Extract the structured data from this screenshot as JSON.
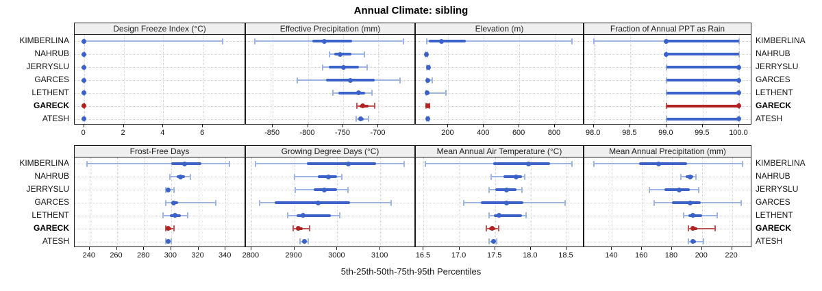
{
  "title": "Annual Climate: sibling",
  "footer_label": "5th-25th-50th-75th-95th Percentiles",
  "colors": {
    "series_blue": "#3a62c9",
    "series_blue_light": "#9db4e6",
    "series_red": "#b22222",
    "series_red_light": "#c45252",
    "grid": "#d4d4d4",
    "header_bg": "#efefef",
    "border": "#1a1a1a"
  },
  "chart_data": {
    "type": "dot-whisker",
    "description": "Percentile range plot: dot = 50th percentile, thick bar = 25th-75th, thin capped whisker = 5th-95th",
    "percentile_levels": [
      "5th",
      "25th",
      "50th",
      "75th",
      "95th"
    ],
    "stations": [
      "KIMBERLINA",
      "NAHRUB",
      "JERRYSLU",
      "GARCES",
      "LETHENT",
      "GARECK",
      "ATESH"
    ],
    "highlighted_station": "GARECK",
    "legend_position": "none",
    "grid": "dotted",
    "panels": [
      {
        "title": "Design Freeze Index (°C)",
        "row": 0,
        "col": 0,
        "xlim": [
          -0.44,
          8.14
        ],
        "ticks": [
          0,
          2,
          4,
          6
        ],
        "tick_labels": [
          "0",
          "2",
          "4",
          "6"
        ],
        "values": {
          "KIMBERLINA": [
            0,
            0,
            0,
            0,
            7
          ],
          "NAHRUB": [
            0,
            0,
            0,
            0,
            0
          ],
          "JERRYSLU": [
            0,
            0,
            0,
            0,
            0
          ],
          "GARCES": [
            0,
            0,
            0,
            0,
            0
          ],
          "LETHENT": [
            0,
            0,
            0,
            0,
            0
          ],
          "GARECK": [
            0,
            0,
            0,
            0,
            0
          ],
          "ATESH": [
            0,
            0,
            0,
            0,
            0
          ]
        }
      },
      {
        "title": "Effective Precipitation (mm)",
        "row": 0,
        "col": 1,
        "xlim": [
          -887,
          -648
        ],
        "ticks": [
          -850,
          -800,
          -750,
          -700
        ],
        "tick_labels": [
          "-850",
          "-800",
          "-750",
          "-700"
        ],
        "values": {
          "KIMBERLINA": [
            -875,
            -794,
            -777,
            -737,
            -665
          ],
          "NAHRUB": [
            -769,
            -763,
            -754,
            -738,
            -720
          ],
          "JERRYSLU": [
            -779,
            -770,
            -750,
            -728,
            -716
          ],
          "GARCES": [
            -815,
            -774,
            -740,
            -705,
            -669
          ],
          "LETHENT": [
            -765,
            -757,
            -728,
            -719,
            -709
          ],
          "GARECK": [
            -731,
            -727,
            -722,
            -714,
            -705
          ],
          "ATESH": [
            -732,
            -728,
            -725,
            -721,
            -714
          ]
        }
      },
      {
        "title": "Elevation (m)",
        "row": 0,
        "col": 2,
        "xlim": [
          21,
          962
        ],
        "ticks": [
          200,
          400,
          600,
          800
        ],
        "tick_labels": [
          "200",
          "400",
          "600",
          "800"
        ],
        "values": {
          "KIMBERLINA": [
            80,
            90,
            160,
            300,
            895
          ],
          "NAHRUB": [
            73,
            75,
            78,
            80,
            83
          ],
          "JERRYSLU": [
            80,
            84,
            88,
            92,
            96
          ],
          "GARCES": [
            78,
            82,
            86,
            95,
            110
          ],
          "LETHENT": [
            75,
            78,
            82,
            95,
            185
          ],
          "GARECK": [
            75,
            80,
            85,
            90,
            95
          ],
          "ATESH": [
            78,
            82,
            85,
            88,
            92
          ]
        }
      },
      {
        "title": "Fraction of Annual PPT as Rain",
        "row": 0,
        "col": 3,
        "xlim": [
          97.88,
          100.17
        ],
        "ticks": [
          98.0,
          98.5,
          99.0,
          99.5,
          100.0
        ],
        "tick_labels": [
          "98.0",
          "98.5",
          "99.0",
          "99.5",
          "100.0"
        ],
        "values": {
          "KIMBERLINA": [
            98.0,
            99.0,
            99.0,
            100.0,
            100.0
          ],
          "NAHRUB": [
            99.0,
            99.0,
            99.0,
            100.0,
            100.0
          ],
          "JERRYSLU": [
            99.0,
            99.0,
            100.0,
            100.0,
            100.0
          ],
          "GARCES": [
            99.0,
            99.0,
            100.0,
            100.0,
            100.0
          ],
          "LETHENT": [
            99.0,
            99.0,
            100.0,
            100.0,
            100.0
          ],
          "GARECK": [
            99.0,
            99.0,
            100.0,
            100.0,
            100.0
          ],
          "ATESH": [
            99.0,
            99.0,
            100.0,
            100.0,
            100.0
          ]
        }
      },
      {
        "title": "Frost-Free Days",
        "row": 1,
        "col": 0,
        "xlim": [
          229.5,
          354.5
        ],
        "ticks": [
          240,
          260,
          280,
          300,
          320,
          340
        ],
        "tick_labels": [
          "240",
          "260",
          "280",
          "300",
          "320",
          "340"
        ],
        "values": {
          "KIMBERLINA": [
            238,
            300,
            310,
            322,
            343
          ],
          "NAHRUB": [
            299,
            304,
            307,
            310,
            314
          ],
          "JERRYSLU": [
            296,
            297,
            298,
            299,
            302
          ],
          "GARCES": [
            296,
            300,
            302,
            305,
            333
          ],
          "LETHENT": [
            294,
            299,
            303,
            307,
            312
          ],
          "GARECK": [
            296,
            297,
            298,
            300,
            302
          ],
          "ATESH": [
            296,
            297,
            298,
            299,
            300
          ]
        }
      },
      {
        "title": "Growing Degree Days (°C)",
        "row": 1,
        "col": 1,
        "xlim": [
          2789,
          3181
        ],
        "ticks": [
          2800,
          2900,
          3000,
          3100
        ],
        "tick_labels": [
          "2800",
          "2900",
          "3000",
          "3100"
        ],
        "values": {
          "KIMBERLINA": [
            2810,
            2930,
            3025,
            3090,
            3155
          ],
          "NAHRUB": [
            2900,
            2955,
            2980,
            3000,
            3010
          ],
          "JERRYSLU": [
            2902,
            2945,
            2970,
            3000,
            3025
          ],
          "GARCES": [
            2820,
            2855,
            2955,
            3030,
            3125
          ],
          "LETHENT": [
            2885,
            2905,
            2920,
            2985,
            3005
          ],
          "GARECK": [
            2897,
            2903,
            2910,
            2920,
            2935
          ],
          "ATESH": [
            2913,
            2918,
            2924,
            2928,
            2932
          ]
        }
      },
      {
        "title": "Mean Annual Air Temperature (°C)",
        "row": 1,
        "col": 2,
        "xlim": [
          16.4,
          18.74
        ],
        "ticks": [
          16.5,
          17.0,
          17.5,
          18.0,
          18.5
        ],
        "tick_labels": [
          "16.5",
          "17.0",
          "17.5",
          "18.0",
          "18.5"
        ],
        "values": {
          "KIMBERLINA": [
            16.52,
            17.47,
            17.97,
            18.27,
            18.58
          ],
          "NAHRUB": [
            17.45,
            17.62,
            17.8,
            17.88,
            17.92
          ],
          "JERRYSLU": [
            17.42,
            17.5,
            17.66,
            17.8,
            17.88
          ],
          "GARCES": [
            17.06,
            17.3,
            17.66,
            17.9,
            18.48
          ],
          "LETHENT": [
            17.42,
            17.48,
            17.56,
            17.88,
            17.93
          ],
          "GARECK": [
            17.38,
            17.42,
            17.46,
            17.5,
            17.55
          ],
          "ATESH": [
            17.42,
            17.45,
            17.48,
            17.5,
            17.52
          ]
        }
      },
      {
        "title": "Mean Annual Precipitation (mm)",
        "row": 1,
        "col": 3,
        "xlim": [
          122,
          233
        ],
        "ticks": [
          140,
          160,
          180,
          200,
          220
        ],
        "tick_labels": [
          "140",
          "160",
          "180",
          "200",
          "220"
        ],
        "values": {
          "KIMBERLINA": [
            128,
            158,
            171,
            190,
            227
          ],
          "NAHRUB": [
            186,
            189,
            192,
            194,
            196
          ],
          "JERRYSLU": [
            165,
            175,
            185,
            192,
            198
          ],
          "GARCES": [
            168,
            180,
            192,
            199,
            226
          ],
          "LETHENT": [
            188,
            191,
            194,
            200,
            210
          ],
          "GARECK": [
            191,
            193,
            194,
            197,
            209
          ],
          "ATESH": [
            191,
            193,
            194,
            196,
            201
          ]
        }
      }
    ]
  }
}
